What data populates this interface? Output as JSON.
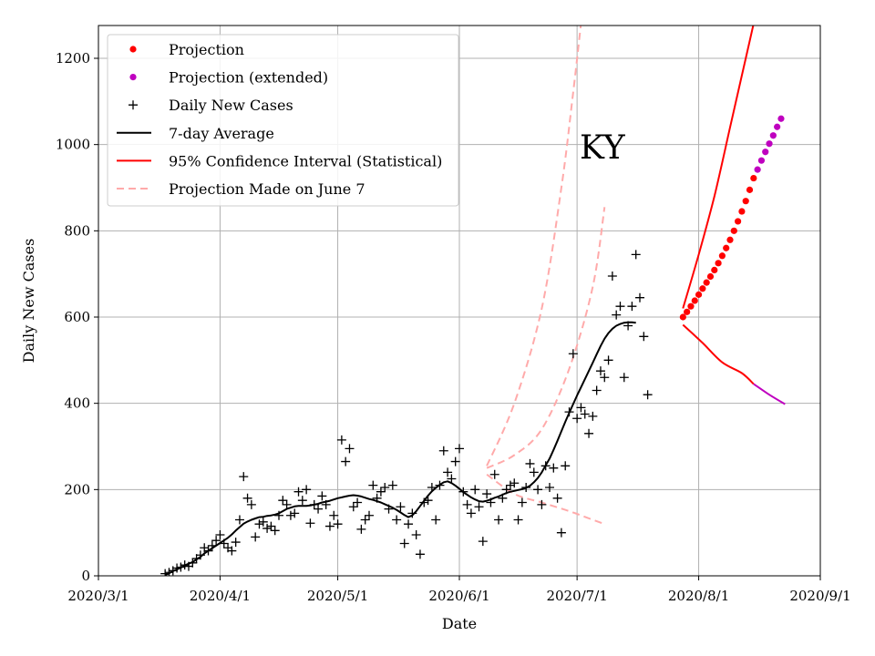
{
  "chart_data": {
    "type": "line",
    "state_label": "KY",
    "xlabel": "Date",
    "ylabel": "Daily New Cases",
    "xlim": [
      "2020-03-01",
      "2020-09-01"
    ],
    "ylim": [
      0,
      1280
    ],
    "grid": true,
    "legend_position": "top-left",
    "x_ticks": [
      {
        "date": "2020-03-01",
        "label": "2020/3/1"
      },
      {
        "date": "2020-04-01",
        "label": "2020/4/1"
      },
      {
        "date": "2020-05-01",
        "label": "2020/5/1"
      },
      {
        "date": "2020-06-01",
        "label": "2020/6/1"
      },
      {
        "date": "2020-07-01",
        "label": "2020/7/1"
      },
      {
        "date": "2020-08-01",
        "label": "2020/8/1"
      },
      {
        "date": "2020-09-01",
        "label": "2020/9/1"
      }
    ],
    "y_ticks": [
      {
        "value": 0,
        "label": "0"
      },
      {
        "value": 200,
        "label": "200"
      },
      {
        "value": 400,
        "label": "400"
      },
      {
        "value": 600,
        "label": "600"
      },
      {
        "value": 800,
        "label": "800"
      },
      {
        "value": 1000,
        "label": "1000"
      },
      {
        "value": 1200,
        "label": "1200"
      }
    ],
    "legend": [
      {
        "key": "projection",
        "label": "Projection",
        "marker": "dot",
        "color": "#ff0000"
      },
      {
        "key": "projection_ext",
        "label": "Projection (extended)",
        "marker": "dot",
        "color": "#bf00bf"
      },
      {
        "key": "daily",
        "label": "Daily New Cases",
        "marker": "plus",
        "color": "#000000"
      },
      {
        "key": "avg",
        "label": "7-day Average",
        "marker": "line",
        "color": "#000000"
      },
      {
        "key": "ci",
        "label": "95% Confidence Interval (Statistical)",
        "marker": "line",
        "color": "#ff0000"
      },
      {
        "key": "june7",
        "label": "Projection Made on June 7",
        "marker": "dashed",
        "color": "#ffaaaa"
      }
    ],
    "series": {
      "daily_new_cases": {
        "start": "2020-03-18",
        "values": [
          5,
          8,
          12,
          18,
          20,
          25,
          22,
          30,
          40,
          48,
          65,
          58,
          70,
          82,
          95,
          75,
          65,
          58,
          78,
          130,
          230,
          180,
          165,
          90,
          120,
          125,
          110,
          115,
          105,
          140,
          175,
          165,
          140,
          145,
          195,
          175,
          200,
          122,
          165,
          155,
          185,
          165,
          115,
          140,
          120,
          315,
          265,
          295,
          160,
          170,
          108,
          130,
          140,
          210,
          180,
          195,
          205,
          155,
          210,
          130,
          160,
          75,
          120,
          145,
          95,
          50,
          170,
          175,
          205,
          130,
          210,
          290,
          240,
          225,
          265,
          295,
          195,
          165,
          145,
          200,
          160,
          80,
          190,
          170,
          235,
          130,
          180,
          200,
          210,
          215,
          130,
          170,
          205,
          260,
          240,
          200,
          165,
          255,
          205,
          250,
          180,
          100,
          255,
          380,
          515,
          365,
          390,
          375,
          330,
          370,
          430,
          475,
          460,
          500,
          695,
          605,
          625,
          460,
          580,
          625,
          745,
          645,
          555,
          420
        ]
      },
      "seven_day_average": {
        "start": "2020-03-18",
        "values": [
          2,
          6,
          11,
          15,
          19,
          24,
          28,
          32,
          38,
          44,
          52,
          58,
          64,
          70,
          76,
          82,
          88,
          96,
          105,
          113,
          121,
          126,
          130,
          133,
          136,
          137,
          139,
          140,
          142,
          145,
          150,
          155,
          158,
          161,
          162,
          162,
          162,
          163,
          165,
          167,
          170,
          172,
          174,
          177,
          180,
          182,
          184,
          186,
          187,
          186,
          184,
          181,
          178,
          176,
          173,
          170,
          166,
          162,
          158,
          153,
          147,
          141,
          136,
          140,
          150,
          162,
          174,
          186,
          196,
          204,
          211,
          217,
          219,
          215,
          209,
          202,
          194,
          188,
          182,
          177,
          173,
          172,
          174,
          177,
          181,
          184,
          188,
          192,
          195,
          197,
          199,
          201,
          204,
          209,
          217,
          227,
          240,
          256,
          272,
          292,
          313,
          335,
          357,
          378,
          398,
          418,
          437,
          456,
          475,
          494,
          514,
          533,
          550,
          563,
          573,
          580,
          584,
          587,
          588,
          588,
          587
        ]
      },
      "projection": {
        "start": "2020-07-28",
        "values": [
          600,
          612,
          625,
          638,
          652,
          666,
          680,
          694,
          709,
          725,
          742,
          760,
          779,
          800,
          822,
          845,
          869,
          895,
          922
        ]
      },
      "projection_extended": {
        "start": "2020-08-16",
        "values": [
          942,
          963,
          983,
          1002,
          1021,
          1041,
          1060
        ]
      },
      "ci_upper": {
        "dates": [
          "2020-07-28",
          "2020-08-01",
          "2020-08-05",
          "2020-08-09",
          "2020-08-12",
          "2020-08-14",
          "2020-08-15"
        ],
        "values": [
          620,
          745,
          880,
          1040,
          1160,
          1240,
          1280
        ]
      },
      "ci_lower": {
        "dates": [
          "2020-07-28",
          "2020-08-02",
          "2020-08-07",
          "2020-08-12",
          "2020-08-15"
        ],
        "values": [
          582,
          540,
          495,
          470,
          445
        ]
      },
      "ci_lower_extended": {
        "dates": [
          "2020-08-15",
          "2020-08-19",
          "2020-08-23"
        ],
        "values": [
          445,
          420,
          398
        ]
      },
      "june7_upper": {
        "dates": [
          "2020-06-08",
          "2020-06-15",
          "2020-06-22",
          "2020-06-27",
          "2020-06-30",
          "2020-07-02"
        ],
        "values": [
          255,
          400,
          620,
          900,
          1120,
          1280
        ]
      },
      "june7_middle": {
        "dates": [
          "2020-06-08",
          "2020-06-15",
          "2020-06-22",
          "2020-06-29",
          "2020-07-05",
          "2020-07-08"
        ],
        "values": [
          250,
          280,
          340,
          480,
          670,
          855
        ]
      },
      "june7_lower": {
        "dates": [
          "2020-06-08",
          "2020-06-15",
          "2020-06-22",
          "2020-06-29",
          "2020-07-05",
          "2020-07-08"
        ],
        "values": [
          235,
          190,
          170,
          150,
          130,
          120
        ]
      }
    }
  }
}
